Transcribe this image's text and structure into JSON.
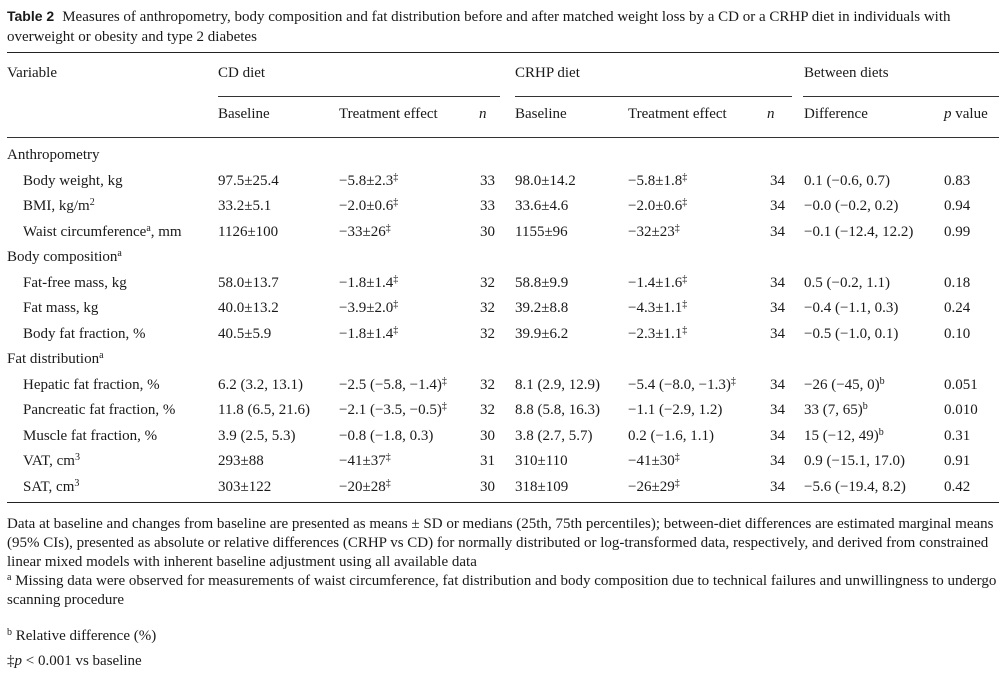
{
  "caption": {
    "label": "Table 2",
    "text": "Measures of anthropometry, body composition and fat distribution before and after matched weight loss by a CD or a CRHP diet in individuals with overweight or obesity and type 2 diabetes"
  },
  "headers": {
    "variable": "Variable",
    "cd_group": "CD diet",
    "crhp_group": "CRHP diet",
    "between_group": "Between diets",
    "baseline": "Baseline",
    "treatment_effect": "Treatment effect",
    "n": "n",
    "difference": "Difference",
    "pvalue_p": "p",
    "pvalue_rest": " value"
  },
  "sections": [
    {
      "title": "Anthropometry",
      "title_sup": "",
      "rows": [
        {
          "variable": "Body weight, kg",
          "var_sup": "",
          "var_tail": "",
          "cd_baseline": "97.5±25.4",
          "cd_effect": "−5.8±2.3",
          "cd_effect_sup": "‡",
          "cd_n": "33",
          "crhp_baseline": "98.0±14.2",
          "crhp_effect": "−5.8±1.8",
          "crhp_effect_sup": "‡",
          "crhp_n": "34",
          "difference": "0.1 (−0.6, 0.7)",
          "diff_sup": "",
          "p": "0.83"
        },
        {
          "variable": "BMI, kg/m",
          "var_sup": "2",
          "var_tail": "",
          "cd_baseline": "33.2±5.1",
          "cd_effect": "−2.0±0.6",
          "cd_effect_sup": "‡",
          "cd_n": "33",
          "crhp_baseline": "33.6±4.6",
          "crhp_effect": "−2.0±0.6",
          "crhp_effect_sup": "‡",
          "crhp_n": "34",
          "difference": "−0.0 (−0.2, 0.2)",
          "diff_sup": "",
          "p": "0.94"
        },
        {
          "variable": "Waist circumference",
          "var_sup": "a",
          "var_tail": ", mm",
          "cd_baseline": "1126±100",
          "cd_effect": "−33±26",
          "cd_effect_sup": "‡",
          "cd_n": "30",
          "crhp_baseline": "1155±96",
          "crhp_effect": "−32±23",
          "crhp_effect_sup": "‡",
          "crhp_n": "34",
          "difference": "−0.1 (−12.4, 12.2)",
          "diff_sup": "",
          "p": "0.99"
        }
      ]
    },
    {
      "title": "Body composition",
      "title_sup": "a",
      "rows": [
        {
          "variable": "Fat-free mass, kg",
          "var_sup": "",
          "var_tail": "",
          "cd_baseline": "58.0±13.7",
          "cd_effect": "−1.8±1.4",
          "cd_effect_sup": "‡",
          "cd_n": "32",
          "crhp_baseline": "58.8±9.9",
          "crhp_effect": "−1.4±1.6",
          "crhp_effect_sup": "‡",
          "crhp_n": "34",
          "difference": "0.5 (−0.2, 1.1)",
          "diff_sup": "",
          "p": "0.18"
        },
        {
          "variable": "Fat mass, kg",
          "var_sup": "",
          "var_tail": "",
          "cd_baseline": "40.0±13.2",
          "cd_effect": "−3.9±2.0",
          "cd_effect_sup": "‡",
          "cd_n": "32",
          "crhp_baseline": "39.2±8.8",
          "crhp_effect": "−4.3±1.1",
          "crhp_effect_sup": "‡",
          "crhp_n": "34",
          "difference": "−0.4 (−1.1, 0.3)",
          "diff_sup": "",
          "p": "0.24"
        },
        {
          "variable": "Body fat fraction, %",
          "var_sup": "",
          "var_tail": "",
          "cd_baseline": "40.5±5.9",
          "cd_effect": "−1.8±1.4",
          "cd_effect_sup": "‡",
          "cd_n": "32",
          "crhp_baseline": "39.9±6.2",
          "crhp_effect": "−2.3±1.1",
          "crhp_effect_sup": "‡",
          "crhp_n": "34",
          "difference": "−0.5 (−1.0, 0.1)",
          "diff_sup": "",
          "p": "0.10"
        }
      ]
    },
    {
      "title": "Fat distribution",
      "title_sup": "a",
      "rows": [
        {
          "variable": "Hepatic fat fraction, %",
          "var_sup": "",
          "var_tail": "",
          "cd_baseline": "6.2 (3.2, 13.1)",
          "cd_effect": "−2.5 (−5.8, −1.4)",
          "cd_effect_sup": "‡",
          "cd_n": "32",
          "crhp_baseline": "8.1 (2.9, 12.9)",
          "crhp_effect": "−5.4 (−8.0, −1.3)",
          "crhp_effect_sup": "‡",
          "crhp_n": "34",
          "difference": "−26 (−45, 0)",
          "diff_sup": "b",
          "p": "0.051"
        },
        {
          "variable": "Pancreatic fat fraction, %",
          "var_sup": "",
          "var_tail": "",
          "cd_baseline": "11.8 (6.5, 21.6)",
          "cd_effect": "−2.1 (−3.5, −0.5)",
          "cd_effect_sup": "‡",
          "cd_n": "32",
          "crhp_baseline": "8.8 (5.8, 16.3)",
          "crhp_effect": "−1.1 (−2.9, 1.2)",
          "crhp_effect_sup": "",
          "crhp_n": "34",
          "difference": "33 (7, 65)",
          "diff_sup": "b",
          "p": "0.010"
        },
        {
          "variable": "Muscle fat fraction, %",
          "var_sup": "",
          "var_tail": "",
          "cd_baseline": "3.9 (2.5, 5.3)",
          "cd_effect": "−0.8 (−1.8, 0.3)",
          "cd_effect_sup": "",
          "cd_n": "30",
          "crhp_baseline": "3.8 (2.7, 5.7)",
          "crhp_effect": "0.2 (−1.6, 1.1)",
          "crhp_effect_sup": "",
          "crhp_n": "34",
          "difference": "15 (−12, 49)",
          "diff_sup": "b",
          "p": "0.31"
        },
        {
          "variable": "VAT, cm",
          "var_sup": "3",
          "var_tail": "",
          "cd_baseline": "293±88",
          "cd_effect": "−41±37",
          "cd_effect_sup": "‡",
          "cd_n": "31",
          "crhp_baseline": "310±110",
          "crhp_effect": "−41±30",
          "crhp_effect_sup": "‡",
          "crhp_n": "34",
          "difference": "0.9 (−15.1, 17.0)",
          "diff_sup": "",
          "p": "0.91"
        },
        {
          "variable": "SAT, cm",
          "var_sup": "3",
          "var_tail": "",
          "cd_baseline": "303±122",
          "cd_effect": "−20±28",
          "cd_effect_sup": "‡",
          "cd_n": "30",
          "crhp_baseline": "318±109",
          "crhp_effect": "−26±29",
          "crhp_effect_sup": "‡",
          "crhp_n": "34",
          "difference": "−5.6 (−19.4, 8.2)",
          "diff_sup": "",
          "p": "0.42"
        }
      ]
    }
  ],
  "footnotes": {
    "general": "Data at baseline and changes from baseline are presented as means ± SD or medians (25th, 75th percentiles); between-diet differences are estimated marginal means (95% CIs), presented as absolute or relative differences (CRHP vs CD) for normally distributed or log-transformed data, respectively, and derived from constrained linear mixed models with inherent baseline adjustment using all available data",
    "a_mark": "a",
    "a_text": "Missing data were observed for measurements of waist circumference, fat distribution and body composition due to technical failures and unwillingness to undergo scanning procedure",
    "b_mark": "b",
    "b_text": "Relative difference (%)",
    "dagger_mark": "‡",
    "dagger_p": "p",
    "dagger_text": " < 0.001 vs baseline"
  }
}
